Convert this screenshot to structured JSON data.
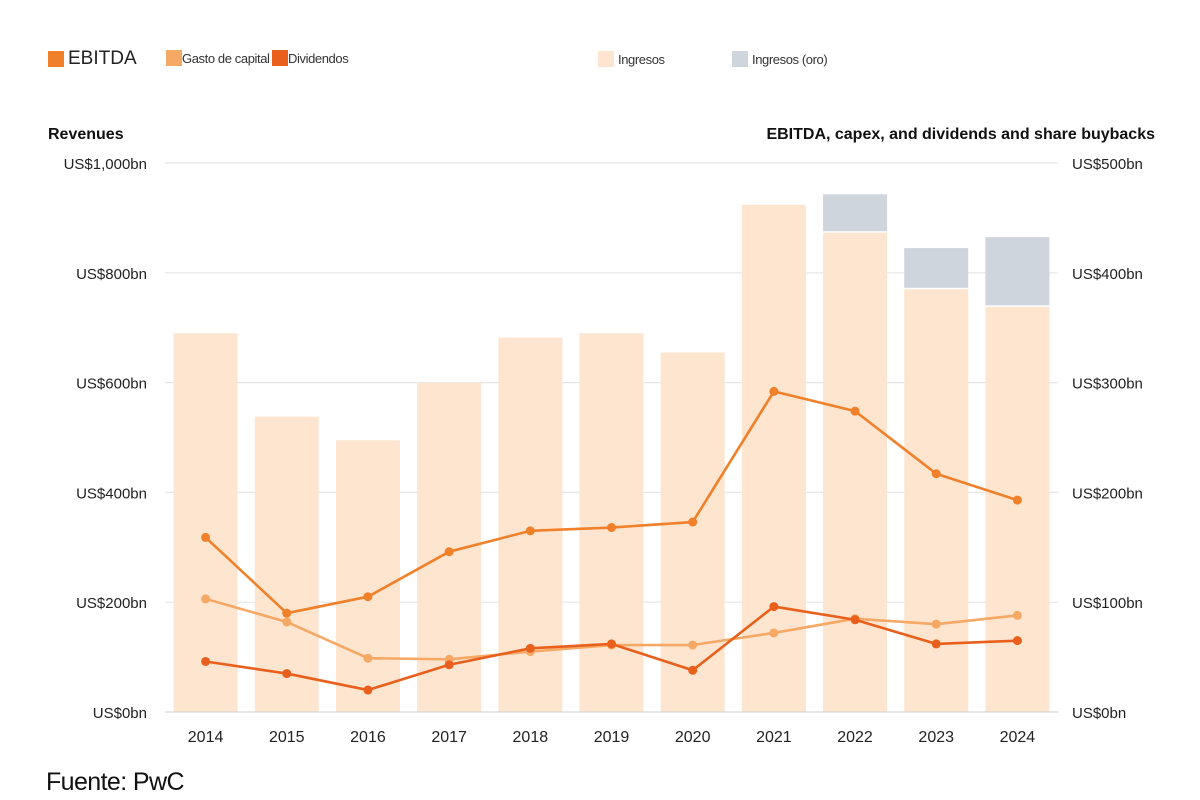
{
  "legend": {
    "ebitda": "EBITDA",
    "capex": "Gasto de capital",
    "dividends": "Dividendos",
    "revenue": "Ingresos",
    "revenue_gold": "Ingresos (oro)"
  },
  "left_axis_title": "Revenues",
  "right_axis_title": "EBITDA, capex, and dividends and share buybacks",
  "source": "Fuente: PwC",
  "colors": {
    "ebitda": "#f0802a",
    "capex": "#f6a865",
    "dividends": "#e8601c",
    "revenue": "#fde5cf",
    "revenue_gold": "#cfd5dc",
    "grid": "#e6e6e6"
  },
  "chart_data": {
    "type": "bar",
    "categories": [
      "2014",
      "2015",
      "2016",
      "2017",
      "2018",
      "2019",
      "2020",
      "2021",
      "2022",
      "2023",
      "2024"
    ],
    "left_axis": {
      "label": "Revenues",
      "ylim": [
        0,
        1000
      ],
      "ticks": [
        0,
        200,
        400,
        600,
        800,
        1000
      ],
      "tick_labels": [
        "US$0bn",
        "US$200bn",
        "US$400bn",
        "US$600bn",
        "US$800bn",
        "US$1,000bn"
      ]
    },
    "right_axis": {
      "label": "EBITDA, capex, and dividends and share buybacks",
      "ylim": [
        0,
        500
      ],
      "ticks": [
        0,
        100,
        200,
        300,
        400,
        500
      ],
      "tick_labels": [
        "US$0bn",
        "US$100bn",
        "US$200bn",
        "US$300bn",
        "US$400bn",
        "US$500bn"
      ]
    },
    "bar_series": [
      {
        "name": "Ingresos",
        "axis": "left",
        "values": [
          690,
          538,
          495,
          600,
          682,
          690,
          655,
          924,
          873,
          770,
          738
        ]
      },
      {
        "name": "Ingresos (oro)",
        "axis": "left",
        "stacked": true,
        "values": [
          0,
          0,
          0,
          0,
          0,
          0,
          0,
          0,
          70,
          75,
          127
        ]
      }
    ],
    "line_series": [
      {
        "name": "EBITDA",
        "axis": "right",
        "values": [
          159,
          90,
          105,
          146,
          165,
          168,
          173,
          292,
          274,
          217,
          193
        ]
      },
      {
        "name": "Gasto de capital",
        "axis": "right",
        "values": [
          103,
          82,
          49,
          48,
          55,
          61,
          61,
          72,
          85,
          80,
          88
        ]
      },
      {
        "name": "Dividendos",
        "axis": "right",
        "values": [
          46,
          35,
          20,
          43,
          58,
          62,
          38,
          96,
          84,
          62,
          65
        ]
      }
    ]
  }
}
